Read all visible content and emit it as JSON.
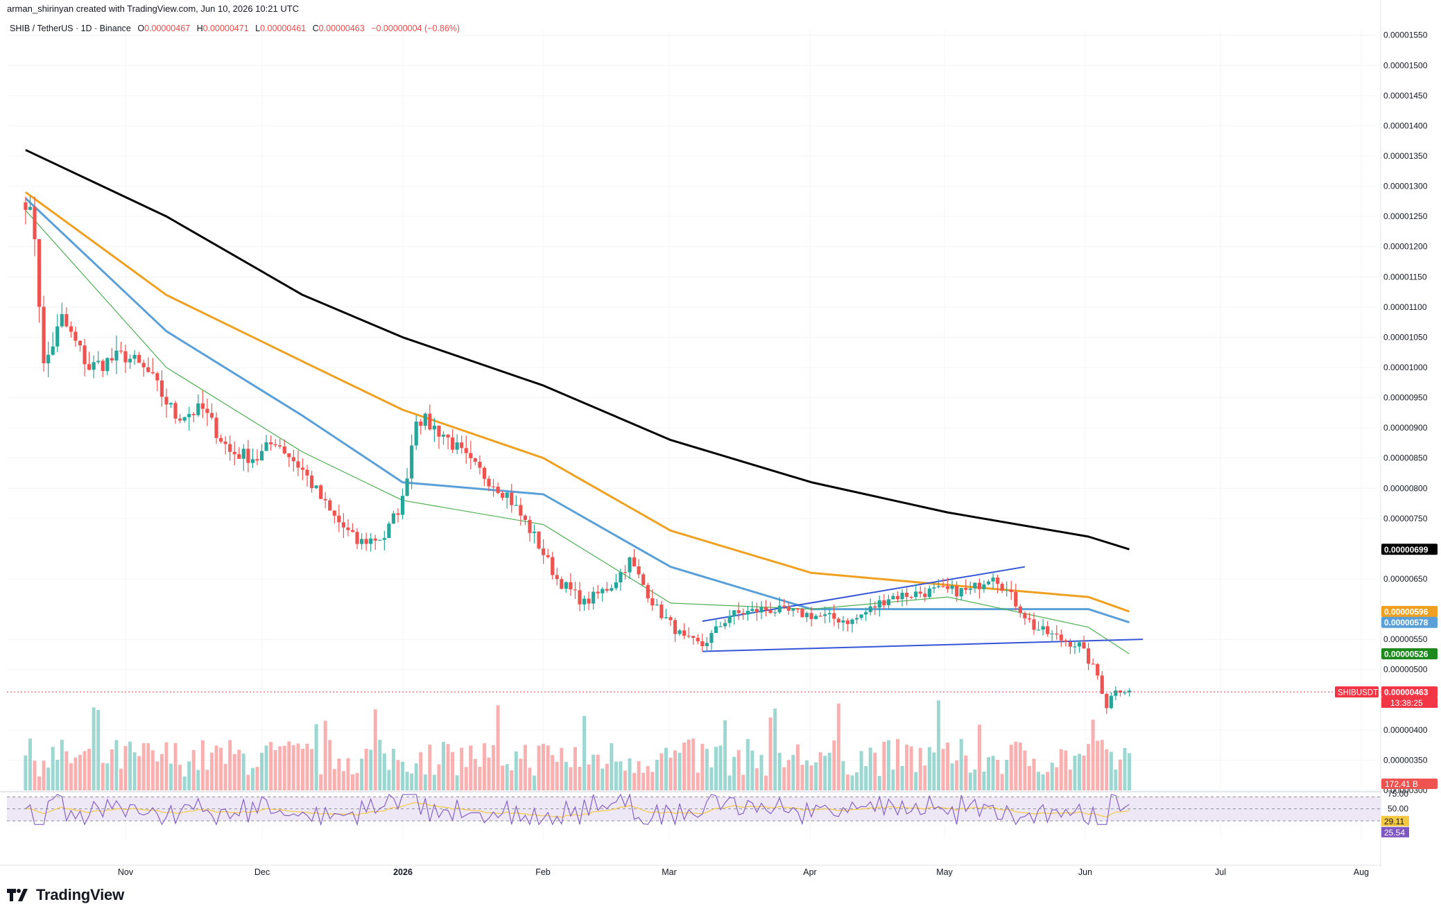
{
  "header": {
    "author_line": "arman_shirinyan created with TradingView.com, Jun 10, 2026 10:21 UTC",
    "symbol": "SHIB / TetherUS · 1D · Binance",
    "ohlc": [
      {
        "label": "O",
        "value": "0.00000467"
      },
      {
        "label": "H",
        "value": "0.00000471"
      },
      {
        "label": "L",
        "value": "0.00000461"
      },
      {
        "label": "C",
        "value": "0.00000463"
      }
    ],
    "change": "−0.00000004 (−0.86%)"
  },
  "brand": {
    "name": "TradingView",
    "icon": "tradingview-logo-icon"
  },
  "colors": {
    "up": "#26a69a",
    "down": "#ef5350",
    "ma200": "#000000",
    "ma100": "#f0a020",
    "ma50": "#5aa0d8",
    "ma20": "#4caf50",
    "trendline": "#3455d6",
    "rsi": "#7e57c2",
    "rsi_ma": "#f5c842",
    "rsi_band": "#ede7f6"
  },
  "chart_data": {
    "type": "candlestick",
    "symbol": "SHIBUSDT",
    "timeframe": "1D",
    "ylim": [
      3e-06,
      1.56e-05
    ],
    "y_ticks": [
      "0.00001550",
      "0.00001500",
      "0.00001450",
      "0.00001400",
      "0.00001350",
      "0.00001300",
      "0.00001250",
      "0.00001200",
      "0.00001150",
      "0.00001100",
      "0.00001050",
      "0.00001000",
      "0.00000950",
      "0.00000900",
      "0.00000850",
      "0.00000800",
      "0.00000750",
      "0.00000650",
      "0.00000550",
      "0.00000500",
      "0.00000400",
      "0.00000350",
      "0.00000300"
    ],
    "x_ticks": [
      "Nov",
      "Dec",
      "2026",
      "Feb",
      "Mar",
      "Apr",
      "May",
      "Jun",
      "Jul",
      "Aug"
    ],
    "price_path": [
      [
        "2025-10-10",
        1.28e-05
      ],
      [
        "2025-10-12",
        1.22e-05
      ],
      [
        "2025-10-14",
        1e-05
      ],
      [
        "2025-10-18",
        1.08e-05
      ],
      [
        "2025-10-24",
        1e-05
      ],
      [
        "2025-11-01",
        1.02e-05
      ],
      [
        "2025-11-06",
        9.9e-06
      ],
      [
        "2025-11-12",
        9.2e-06
      ],
      [
        "2025-11-18",
        9.3e-06
      ],
      [
        "2025-11-24",
        8.6e-06
      ],
      [
        "2025-11-30",
        8.5e-06
      ],
      [
        "2025-12-04",
        8.8e-06
      ],
      [
        "2025-12-10",
        8.3e-06
      ],
      [
        "2025-12-16",
        7.6e-06
      ],
      [
        "2025-12-22",
        7.1e-06
      ],
      [
        "2025-12-28",
        7.2e-06
      ],
      [
        "2026-01-01",
        7.8e-06
      ],
      [
        "2026-01-04",
        9.2e-06
      ],
      [
        "2026-01-10",
        8.9e-06
      ],
      [
        "2026-01-16",
        8.4e-06
      ],
      [
        "2026-01-24",
        7.9e-06
      ],
      [
        "2026-01-30",
        7.2e-06
      ],
      [
        "2026-02-04",
        6.5e-06
      ],
      [
        "2026-02-10",
        6.1e-06
      ],
      [
        "2026-02-16",
        6.4e-06
      ],
      [
        "2026-02-20",
        6.8e-06
      ],
      [
        "2026-02-26",
        6e-06
      ],
      [
        "2026-03-04",
        5.5e-06
      ],
      [
        "2026-03-08",
        5.4e-06
      ],
      [
        "2026-03-14",
        5.9e-06
      ],
      [
        "2026-03-22",
        6e-06
      ],
      [
        "2026-04-01",
        5.9e-06
      ],
      [
        "2026-04-10",
        5.8e-06
      ],
      [
        "2026-04-18",
        6.2e-06
      ],
      [
        "2026-04-28",
        6.3e-06
      ],
      [
        "2026-05-06",
        6.3e-06
      ],
      [
        "2026-05-11",
        6.6e-06
      ],
      [
        "2026-05-15",
        6.2e-06
      ],
      [
        "2026-05-20",
        5.7e-06
      ],
      [
        "2026-05-26",
        5.5e-06
      ],
      [
        "2026-05-30",
        5.4e-06
      ],
      [
        "2026-06-03",
        4.9e-06
      ],
      [
        "2026-06-05",
        4.4e-06
      ],
      [
        "2026-06-07",
        4.7e-06
      ],
      [
        "2026-06-10",
        4.63e-06
      ]
    ],
    "series": [
      {
        "name": "MA 200",
        "color": "#000000",
        "values": [
          [
            "2025-10-10",
            1.36e-05
          ],
          [
            "2025-11-10",
            1.25e-05
          ],
          [
            "2025-12-10",
            1.12e-05
          ],
          [
            "2026-01-01",
            1.05e-05
          ],
          [
            "2026-02-01",
            9.7e-06
          ],
          [
            "2026-03-01",
            8.8e-06
          ],
          [
            "2026-04-01",
            8.1e-06
          ],
          [
            "2026-05-01",
            7.6e-06
          ],
          [
            "2026-06-01",
            7.2e-06
          ],
          [
            "2026-06-10",
            6.99e-06
          ]
        ]
      },
      {
        "name": "MA 100",
        "color": "#f0a020",
        "values": [
          [
            "2025-10-10",
            1.29e-05
          ],
          [
            "2025-11-10",
            1.12e-05
          ],
          [
            "2025-12-10",
            1.01e-05
          ],
          [
            "2026-01-01",
            9.3e-06
          ],
          [
            "2026-02-01",
            8.5e-06
          ],
          [
            "2026-03-01",
            7.3e-06
          ],
          [
            "2026-04-01",
            6.6e-06
          ],
          [
            "2026-05-01",
            6.4e-06
          ],
          [
            "2026-06-01",
            6.2e-06
          ],
          [
            "2026-06-10",
            5.96e-06
          ]
        ]
      },
      {
        "name": "MA 50",
        "color": "#5aa0d8",
        "values": [
          [
            "2025-10-10",
            1.28e-05
          ],
          [
            "2025-11-10",
            1.06e-05
          ],
          [
            "2025-12-10",
            9.2e-06
          ],
          [
            "2026-01-01",
            8.1e-06
          ],
          [
            "2026-02-01",
            7.9e-06
          ],
          [
            "2026-03-01",
            6.7e-06
          ],
          [
            "2026-04-01",
            6e-06
          ],
          [
            "2026-05-01",
            6e-06
          ],
          [
            "2026-06-01",
            6e-06
          ],
          [
            "2026-06-10",
            5.78e-06
          ]
        ]
      },
      {
        "name": "MA 20",
        "color": "#4caf50",
        "values": [
          [
            "2025-10-10",
            1.26e-05
          ],
          [
            "2025-11-10",
            1e-05
          ],
          [
            "2025-12-10",
            8.6e-06
          ],
          [
            "2026-01-01",
            7.8e-06
          ],
          [
            "2026-02-01",
            7.4e-06
          ],
          [
            "2026-03-01",
            6.1e-06
          ],
          [
            "2026-04-01",
            6e-06
          ],
          [
            "2026-05-01",
            6.2e-06
          ],
          [
            "2026-06-01",
            5.7e-06
          ],
          [
            "2026-06-10",
            5.26e-06
          ]
        ]
      }
    ],
    "trendlines": [
      {
        "from": [
          "2026-03-08",
          5.8e-06
        ],
        "to": [
          "2026-05-18",
          6.7e-06
        ]
      },
      {
        "from": [
          "2026-03-08",
          5.3e-06
        ],
        "to": [
          "2026-06-13",
          5.5e-06
        ]
      }
    ],
    "price_labels": [
      {
        "text": "0.00000699",
        "color": "#000000",
        "value": 6.99e-06
      },
      {
        "text": "0.00000596",
        "color": "#f0a020",
        "value": 5.96e-06
      },
      {
        "text": "0.00000578",
        "color": "#5aa0d8",
        "value": 5.78e-06
      },
      {
        "text": "0.00000526",
        "color": "#1e8a1e",
        "value": 5.26e-06
      },
      {
        "text": "0.00000463",
        "color": "#f23645",
        "value": 4.63e-06,
        "timer": "13:38:25",
        "tag": "SHIBUSDT"
      }
    ],
    "volume_label": "172.41 B",
    "rsi": {
      "levels": [
        "75.00",
        "50.00"
      ],
      "upper": 70,
      "lower": 30,
      "rsi_value": "25.54",
      "rsi_ma_value": "29.11"
    }
  }
}
